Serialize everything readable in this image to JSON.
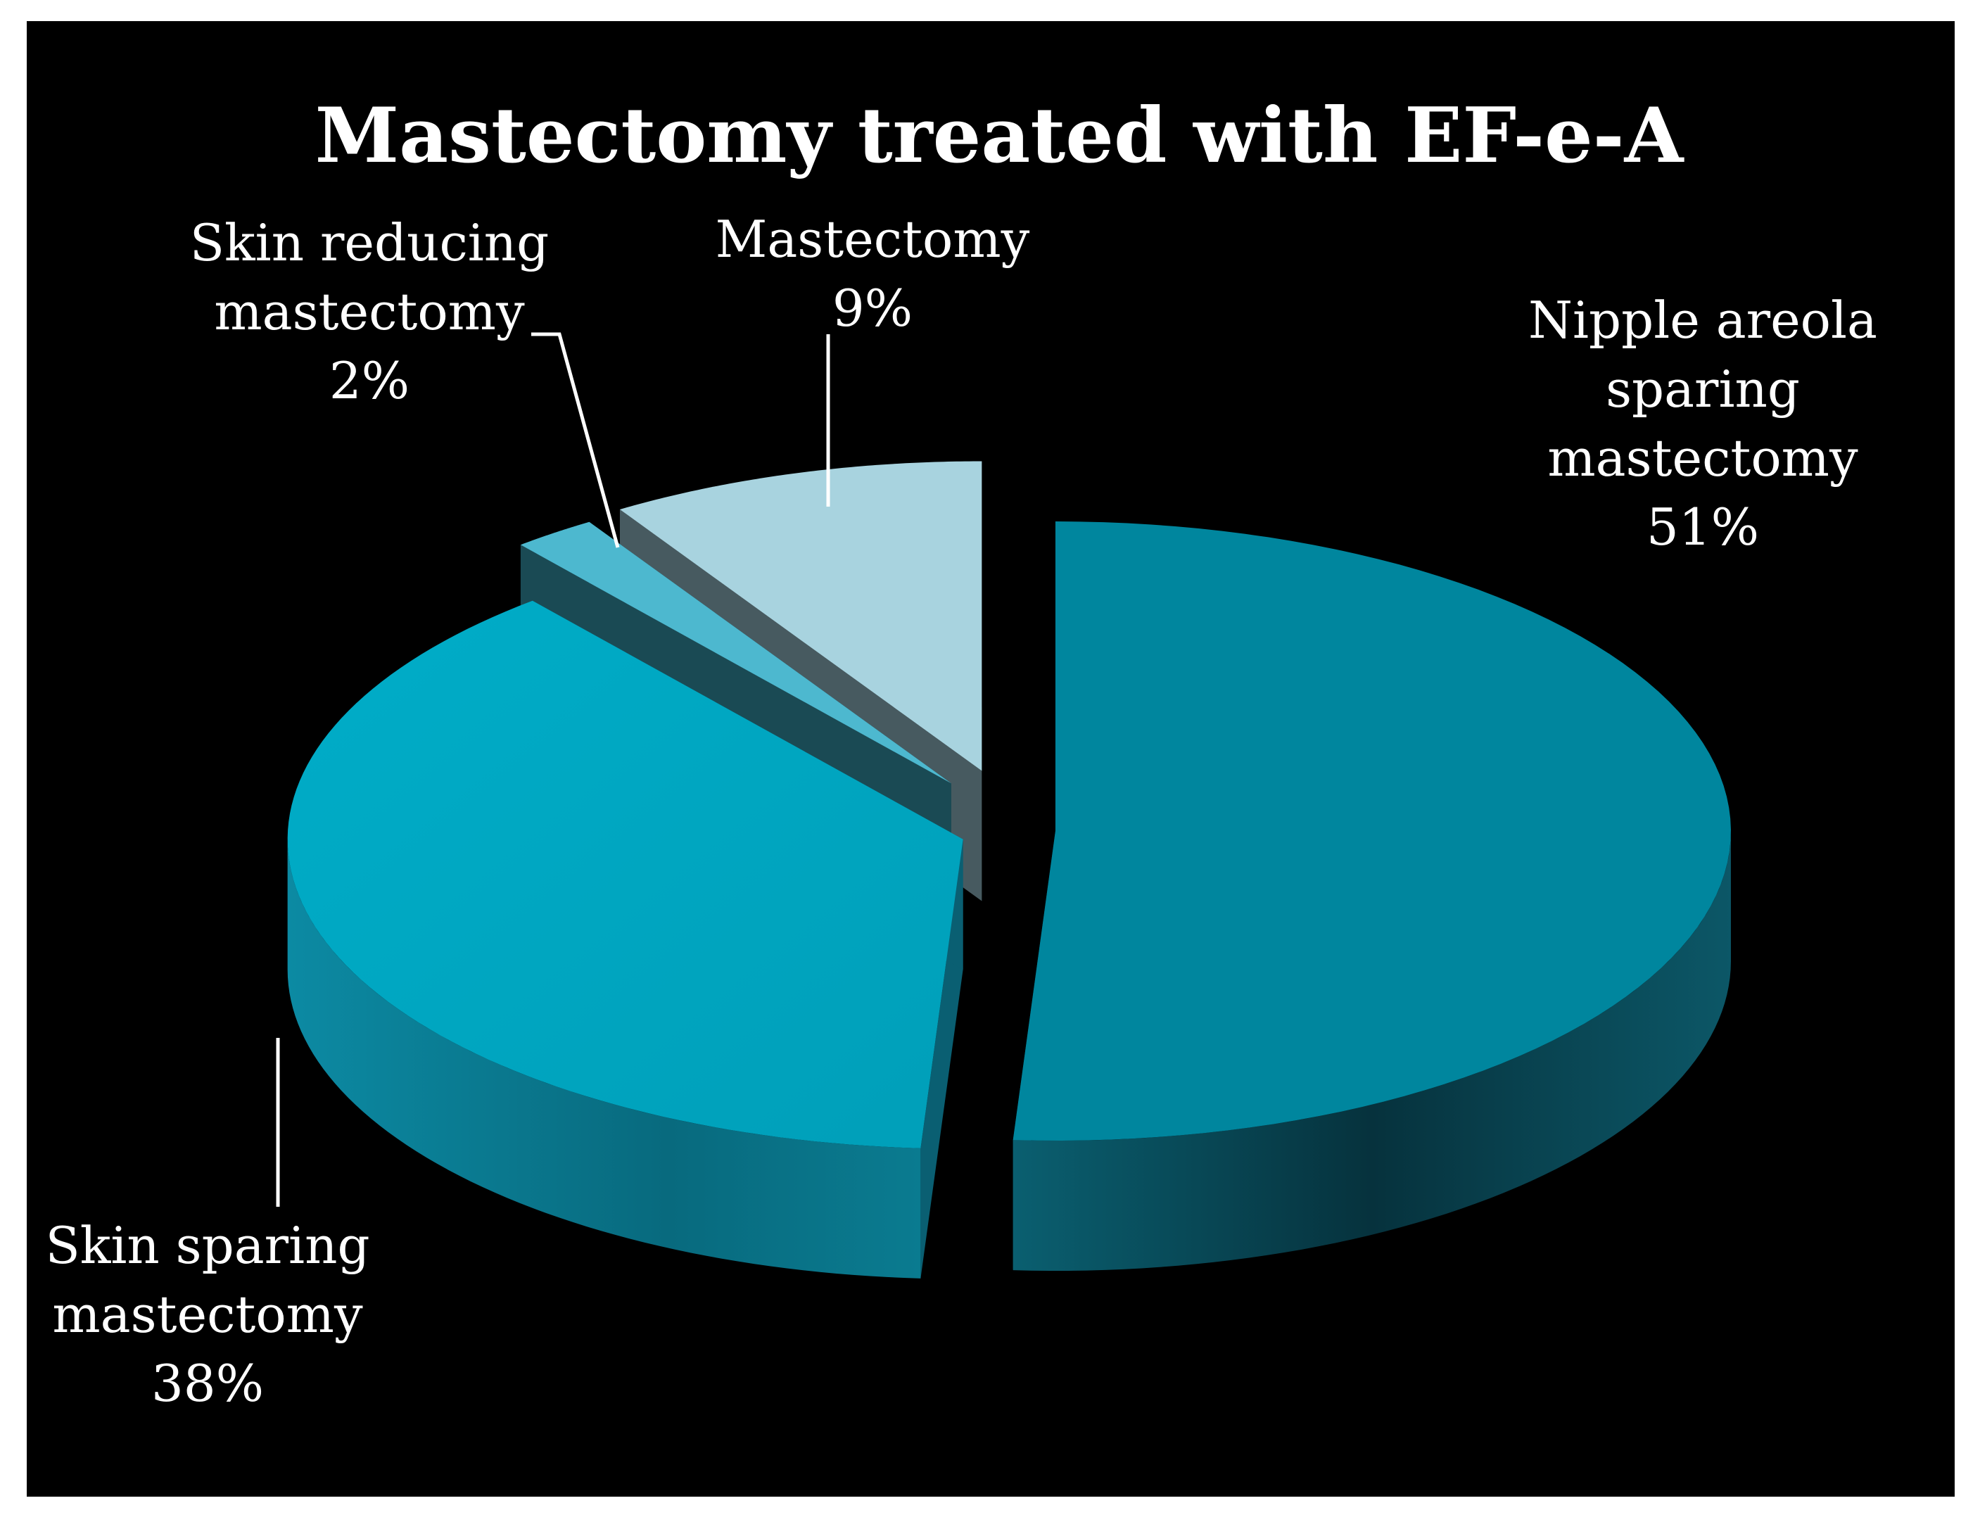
{
  "chart_data": {
    "type": "pie",
    "title": "Mastectomy treated with EF-e-A",
    "style": "3d-exploded",
    "background": "#000000",
    "slices": [
      {
        "name": "Nipple areola sparing mastectomy",
        "label_lines": [
          "Nipple areola",
          "sparing",
          "mastectomy",
          "51%"
        ],
        "value": 51,
        "color": "#00869e"
      },
      {
        "name": "Skin sparing mastectomy",
        "label_lines": [
          "Skin sparing",
          "mastectomy",
          "38%"
        ],
        "value": 38,
        "color": "#00a5c0"
      },
      {
        "name": "Skin reducing mastectomy",
        "label_lines": [
          "Skin reducing",
          "mastectomy",
          "2%"
        ],
        "value": 2,
        "color": "#4db8cf"
      },
      {
        "name": "Mastectomy",
        "label_lines": [
          "Mastectomy",
          "9%"
        ],
        "value": 9,
        "color": "#a8d3df"
      }
    ]
  }
}
